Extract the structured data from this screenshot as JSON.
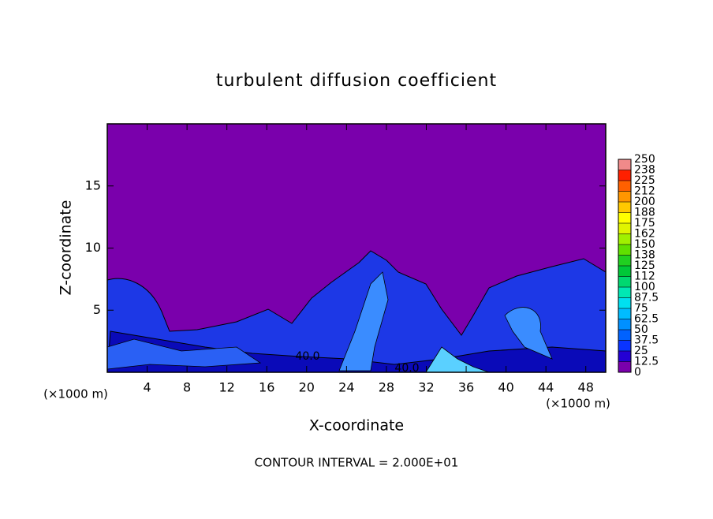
{
  "chart_data": {
    "type": "contour",
    "title": "turbulent diffusion coefficient",
    "x_label": "X-coordinate",
    "y_label": "Z-coordinate",
    "x_unit": "(×1000 m)",
    "y_unit": "(×1000 m)",
    "footer": "CONTOUR INTERVAL = 2.000E+01",
    "contour_labels": [
      "40.0",
      "40.0"
    ],
    "xlim": [
      0,
      50
    ],
    "ylim": [
      0,
      20
    ],
    "xticks": [
      4,
      8,
      12,
      16,
      20,
      24,
      28,
      32,
      36,
      40,
      44,
      48
    ],
    "yticks": [
      5,
      10,
      15
    ],
    "colorbar": {
      "lim": [
        0,
        250
      ],
      "ticks": [
        0,
        12.5,
        25,
        37.5,
        50,
        62.5,
        75,
        87.5,
        100,
        {
          "value": 112.5,
          "label": "112"
        },
        125,
        {
          "value": 137.5,
          "label": "138"
        },
        150,
        {
          "value": 162.5,
          "label": "162"
        },
        175,
        {
          "value": 187.5,
          "label": "188"
        },
        200,
        {
          "value": 212.5,
          "label": "212"
        },
        225,
        {
          "value": 237.5,
          "label": "238"
        },
        250
      ],
      "colors": [
        "#7a00ac",
        "#2400d4",
        "#0a34ff",
        "#0062ff",
        "#0090ff",
        "#00bcff",
        "#00e0f0",
        "#00e8b4",
        "#00d870",
        "#00c838",
        "#20d020",
        "#60e000",
        "#a0f000",
        "#e0f400",
        "#ffff00",
        "#ffc800",
        "#ff9600",
        "#ff6000",
        "#ff2000",
        "#f08a8a"
      ]
    }
  }
}
